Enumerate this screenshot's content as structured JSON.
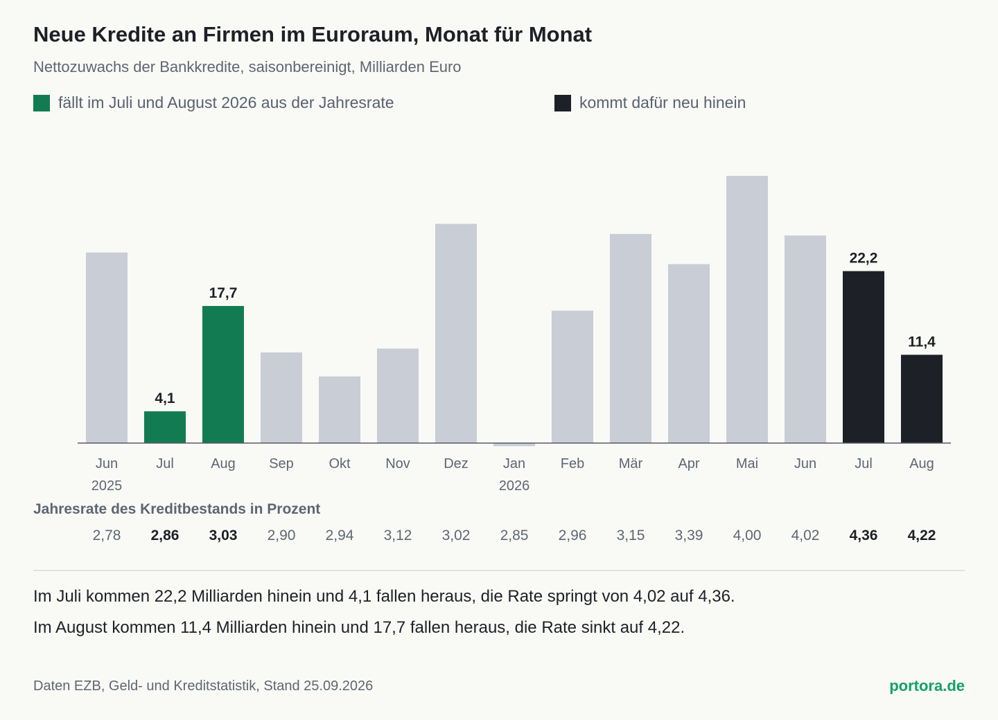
{
  "title": "Neue Kredite an Firmen im Euroraum, Monat für Monat",
  "subtitle": "Nettozuwachs der Bankkredite, saisonbereinigt, Milliarden Euro",
  "legend": {
    "out_label": "fällt im Juli und August 2026 aus der Jahresrate",
    "in_label": "kommt dafür neu hinein"
  },
  "colors": {
    "out": "#137b52",
    "in": "#1d2026",
    "neutral": "#c9cdd5",
    "axis": "#5f6672",
    "brand": "#13a06a"
  },
  "chart_data": {
    "type": "bar",
    "title": "Neue Kredite an Firmen im Euroraum, Monat für Monat",
    "subtitle": "Nettozuwachs der Bankkredite, saisonbereinigt, Milliarden Euro",
    "categories": [
      "Jun",
      "Jul",
      "Aug",
      "Sep",
      "Okt",
      "Nov",
      "Dez",
      "Jan",
      "Feb",
      "Mär",
      "Apr",
      "Mai",
      "Jun",
      "Jul",
      "Aug"
    ],
    "year_labels": [
      "2025",
      "",
      "",
      "",
      "",
      "",
      "",
      "2026",
      "",
      "",
      "",
      "",
      "",
      "",
      ""
    ],
    "values": [
      24.6,
      4.1,
      17.7,
      11.7,
      8.6,
      12.2,
      28.3,
      -0.4,
      17.1,
      27.0,
      23.1,
      34.5,
      26.8,
      22.2,
      11.4
    ],
    "highlight": [
      "neutral",
      "out",
      "out",
      "neutral",
      "neutral",
      "neutral",
      "neutral",
      "neutral",
      "neutral",
      "neutral",
      "neutral",
      "neutral",
      "neutral",
      "in",
      "in"
    ],
    "value_labels": [
      "",
      "4,1",
      "17,7",
      "",
      "",
      "",
      "",
      "",
      "",
      "",
      "",
      "",
      "",
      "22,2",
      "11,4"
    ],
    "ylim": [
      -1,
      37
    ],
    "grid": false,
    "legend_position": "top-left",
    "rate_heading": "Jahresrate des Kreditbestands in Prozent",
    "rates": [
      "2,78",
      "2,86",
      "3,03",
      "2,90",
      "2,94",
      "3,12",
      "3,02",
      "2,85",
      "2,96",
      "3,15",
      "3,39",
      "4,00",
      "4,02",
      "4,36",
      "4,22"
    ],
    "rate_bold": [
      false,
      true,
      true,
      false,
      false,
      false,
      false,
      false,
      false,
      false,
      false,
      false,
      false,
      true,
      true
    ]
  },
  "notes": [
    "Im Juli kommen 22,2 Milliarden hinein und 4,1 fallen heraus, die Rate springt von 4,02 auf 4,36.",
    "Im August kommen 11,4 Milliarden hinein und 17,7 fallen heraus, die Rate sinkt auf 4,22."
  ],
  "footer": {
    "source": "Daten EZB, Geld- und Kreditstatistik, Stand 25.09.2026",
    "brand": "portora.de"
  }
}
